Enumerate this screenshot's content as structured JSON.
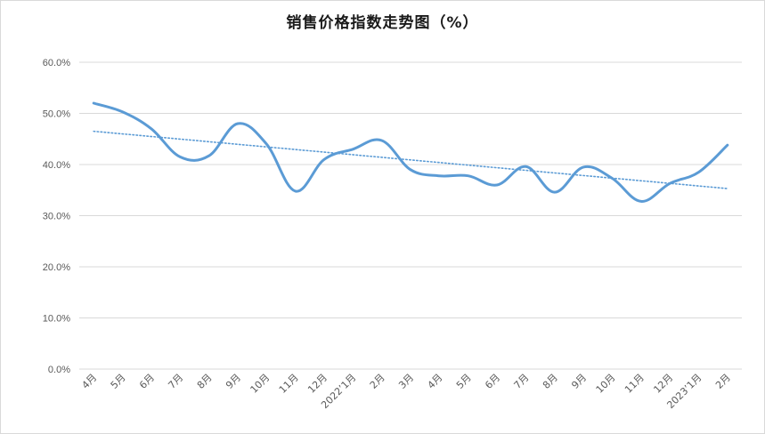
{
  "chart_data": {
    "type": "line",
    "title": "销售价格指数走势图（%）",
    "xlabel": "",
    "ylabel": "",
    "ylim": [
      0,
      60
    ],
    "yticks": [
      "0.0%",
      "10.0%",
      "20.0%",
      "30.0%",
      "40.0%",
      "50.0%",
      "60.0%"
    ],
    "grid": true,
    "legend": "none",
    "categories": [
      "4月",
      "5月",
      "6月",
      "7月",
      "8月",
      "9月",
      "10月",
      "11月",
      "12月",
      "2022’1月",
      "2月",
      "3月",
      "4月",
      "5月",
      "6月",
      "7月",
      "8月",
      "9月",
      "10月",
      "11月",
      "12月",
      "2023’1月",
      "2月"
    ],
    "series": [
      {
        "values": [
          52.0,
          50.3,
          47.0,
          41.5,
          41.7,
          48.0,
          44.0,
          34.8,
          41.0,
          43.0,
          44.7,
          39.0,
          37.8,
          37.8,
          36.0,
          39.6,
          34.6,
          39.5,
          37.3,
          32.8,
          36.3,
          38.5,
          43.8
        ]
      }
    ],
    "trendline": {
      "type": "linear",
      "start": 46.5,
      "end": 35.3
    },
    "colors": {
      "series": "#5b9bd5",
      "trend": "#5b9bd5",
      "grid": "#d9d9d9",
      "axis_text": "#595959"
    }
  }
}
